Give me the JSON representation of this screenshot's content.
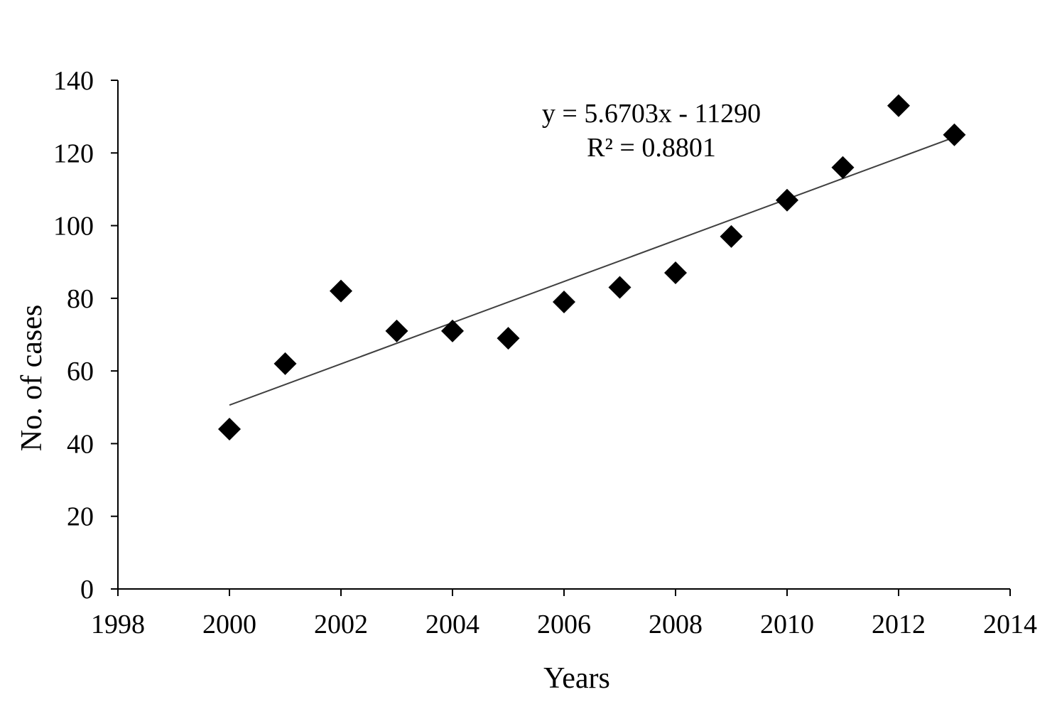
{
  "chart_data": {
    "type": "scatter",
    "title": "",
    "xlabel": "Years",
    "ylabel": "No. of cases",
    "xlim": [
      1998,
      2014
    ],
    "ylim": [
      0,
      140
    ],
    "xticks": [
      1998,
      2000,
      2002,
      2004,
      2006,
      2008,
      2010,
      2012,
      2014
    ],
    "yticks": [
      0,
      20,
      40,
      60,
      80,
      100,
      120,
      140
    ],
    "grid": false,
    "legend": "none",
    "marker": "diamond",
    "colors": {
      "marker": "#000000",
      "trendline": "#404040",
      "axis": "#000000"
    },
    "series": [
      {
        "x": [
          2000,
          2001,
          2002,
          2003,
          2004,
          2005,
          2006,
          2007,
          2008,
          2009,
          2010,
          2011,
          2012,
          2013
        ],
        "y": [
          44,
          62,
          82,
          71,
          71,
          69,
          79,
          83,
          87,
          97,
          107,
          116,
          133,
          125
        ]
      }
    ],
    "trendline": {
      "type": "linear",
      "slope": 5.6703,
      "intercept": -11290,
      "x_range": [
        2000,
        2013
      ]
    },
    "annotations": [
      "y = 5.6703x - 11290",
      "R² = 0.8801"
    ]
  }
}
